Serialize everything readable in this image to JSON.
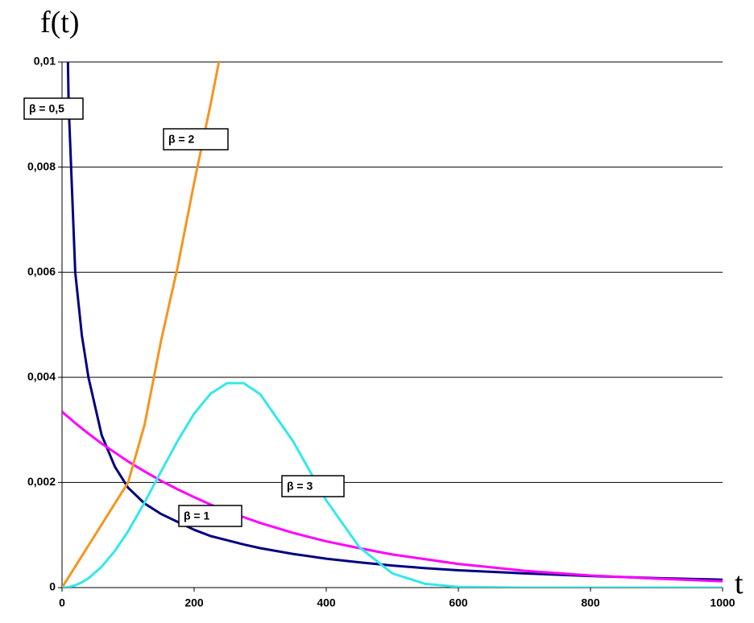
{
  "chart_data": {
    "type": "line",
    "y_axis_label": "f(t)",
    "x_axis_label": "t",
    "x": [
      0,
      5,
      10,
      20,
      30,
      40,
      60,
      80,
      100,
      125,
      150,
      175,
      200,
      225,
      250,
      275,
      300,
      350,
      400,
      450,
      500,
      550,
      600,
      700,
      800,
      900,
      1000
    ],
    "series": [
      {
        "name": "β = 0,5",
        "color": "#000080",
        "values": [
          null,
          0.013,
          0.0092,
          0.006,
          0.0048,
          0.004,
          0.0029,
          0.0023,
          0.0019,
          0.0016,
          0.0014,
          0.00125,
          0.0011,
          0.00098,
          0.0009,
          0.00082,
          0.00075,
          0.00064,
          0.00055,
          0.00048,
          0.00042,
          0.00037,
          0.00033,
          0.00027,
          0.00022,
          0.00018,
          0.00015
        ]
      },
      {
        "name": "β = 1",
        "color": "#ff00ff",
        "values": [
          0.00335,
          0.00329,
          0.00324,
          0.00313,
          0.00303,
          0.00293,
          0.00274,
          0.00257,
          0.0024,
          0.00221,
          0.00203,
          0.00187,
          0.00172,
          0.00158,
          0.00145,
          0.00134,
          0.00123,
          0.00104,
          0.00088,
          0.00075,
          0.00063,
          0.00054,
          0.00045,
          0.00032,
          0.00023,
          0.00017,
          0.00012
        ]
      },
      {
        "name": "β = 2",
        "color": "#f7941d",
        "values": [
          0,
          0.0001,
          0.0002,
          0.0004,
          0.0006,
          0.0008,
          0.0012,
          0.0016,
          0.002,
          0.0031,
          0.0047,
          0.0061,
          0.0077,
          0.0092,
          0.0108,
          null,
          null,
          null,
          null,
          null,
          null,
          null,
          null,
          null,
          null,
          null,
          null
        ]
      },
      {
        "name": "β = 3",
        "color": "#33e8e8",
        "values": [
          0,
          3e-06,
          1.1e-05,
          4.4e-05,
          0.0001,
          0.000177,
          0.000397,
          0.000698,
          0.00107,
          0.00162,
          0.00221,
          0.00279,
          0.00331,
          0.00369,
          0.00389,
          0.00389,
          0.00368,
          0.00278,
          0.00166,
          0.00077,
          0.00027,
          7e-05,
          1.3e-05,
          0,
          0,
          0,
          0
        ]
      }
    ],
    "xlim": [
      0,
      1000
    ],
    "xticks": [
      0,
      200,
      400,
      600,
      800,
      1000
    ],
    "ylim": [
      0,
      0.01
    ],
    "yticks": [
      0,
      {
        "value": 0.002,
        "label": "0,002"
      },
      {
        "value": 0.004,
        "label": "0,004"
      },
      {
        "value": 0.006,
        "label": "0,006"
      },
      {
        "value": 0.008,
        "label": "0,008"
      },
      {
        "value": 0.01,
        "label": "0,01"
      }
    ],
    "grid": true
  }
}
